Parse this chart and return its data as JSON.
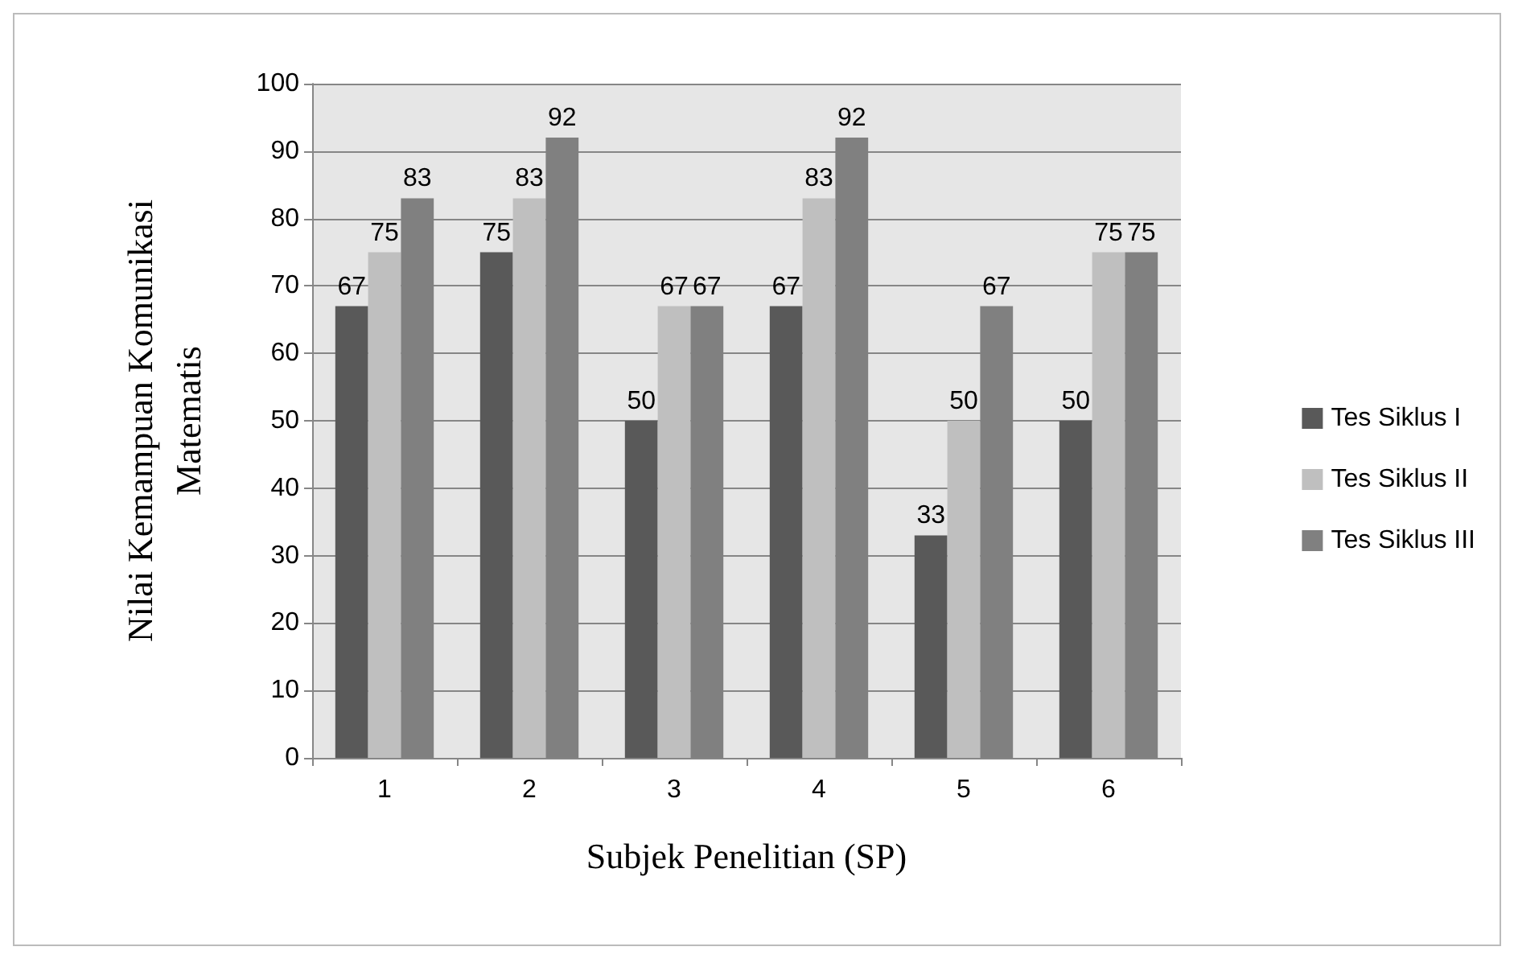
{
  "chart_data": {
    "type": "bar",
    "xlabel": "Subjek Penelitian (SP)",
    "ylabel": "Nilai Kemampuan Komunikasi\nMatematis",
    "categories": [
      "1",
      "2",
      "3",
      "4",
      "5",
      "6"
    ],
    "series": [
      {
        "name": "Tes Siklus I",
        "color": "#595959",
        "values": [
          67,
          75,
          50,
          67,
          33,
          50
        ]
      },
      {
        "name": "Tes Siklus II",
        "color": "#bfbfbf",
        "values": [
          75,
          83,
          67,
          83,
          50,
          75
        ]
      },
      {
        "name": "Tes Siklus III",
        "color": "#808080",
        "values": [
          83,
          92,
          67,
          92,
          67,
          75
        ]
      }
    ],
    "ylim": [
      0,
      100
    ],
    "yticks": [
      0,
      10,
      20,
      30,
      40,
      50,
      60,
      70,
      80,
      90,
      100
    ],
    "grid": "y",
    "legend": "right",
    "data_labels": true
  }
}
